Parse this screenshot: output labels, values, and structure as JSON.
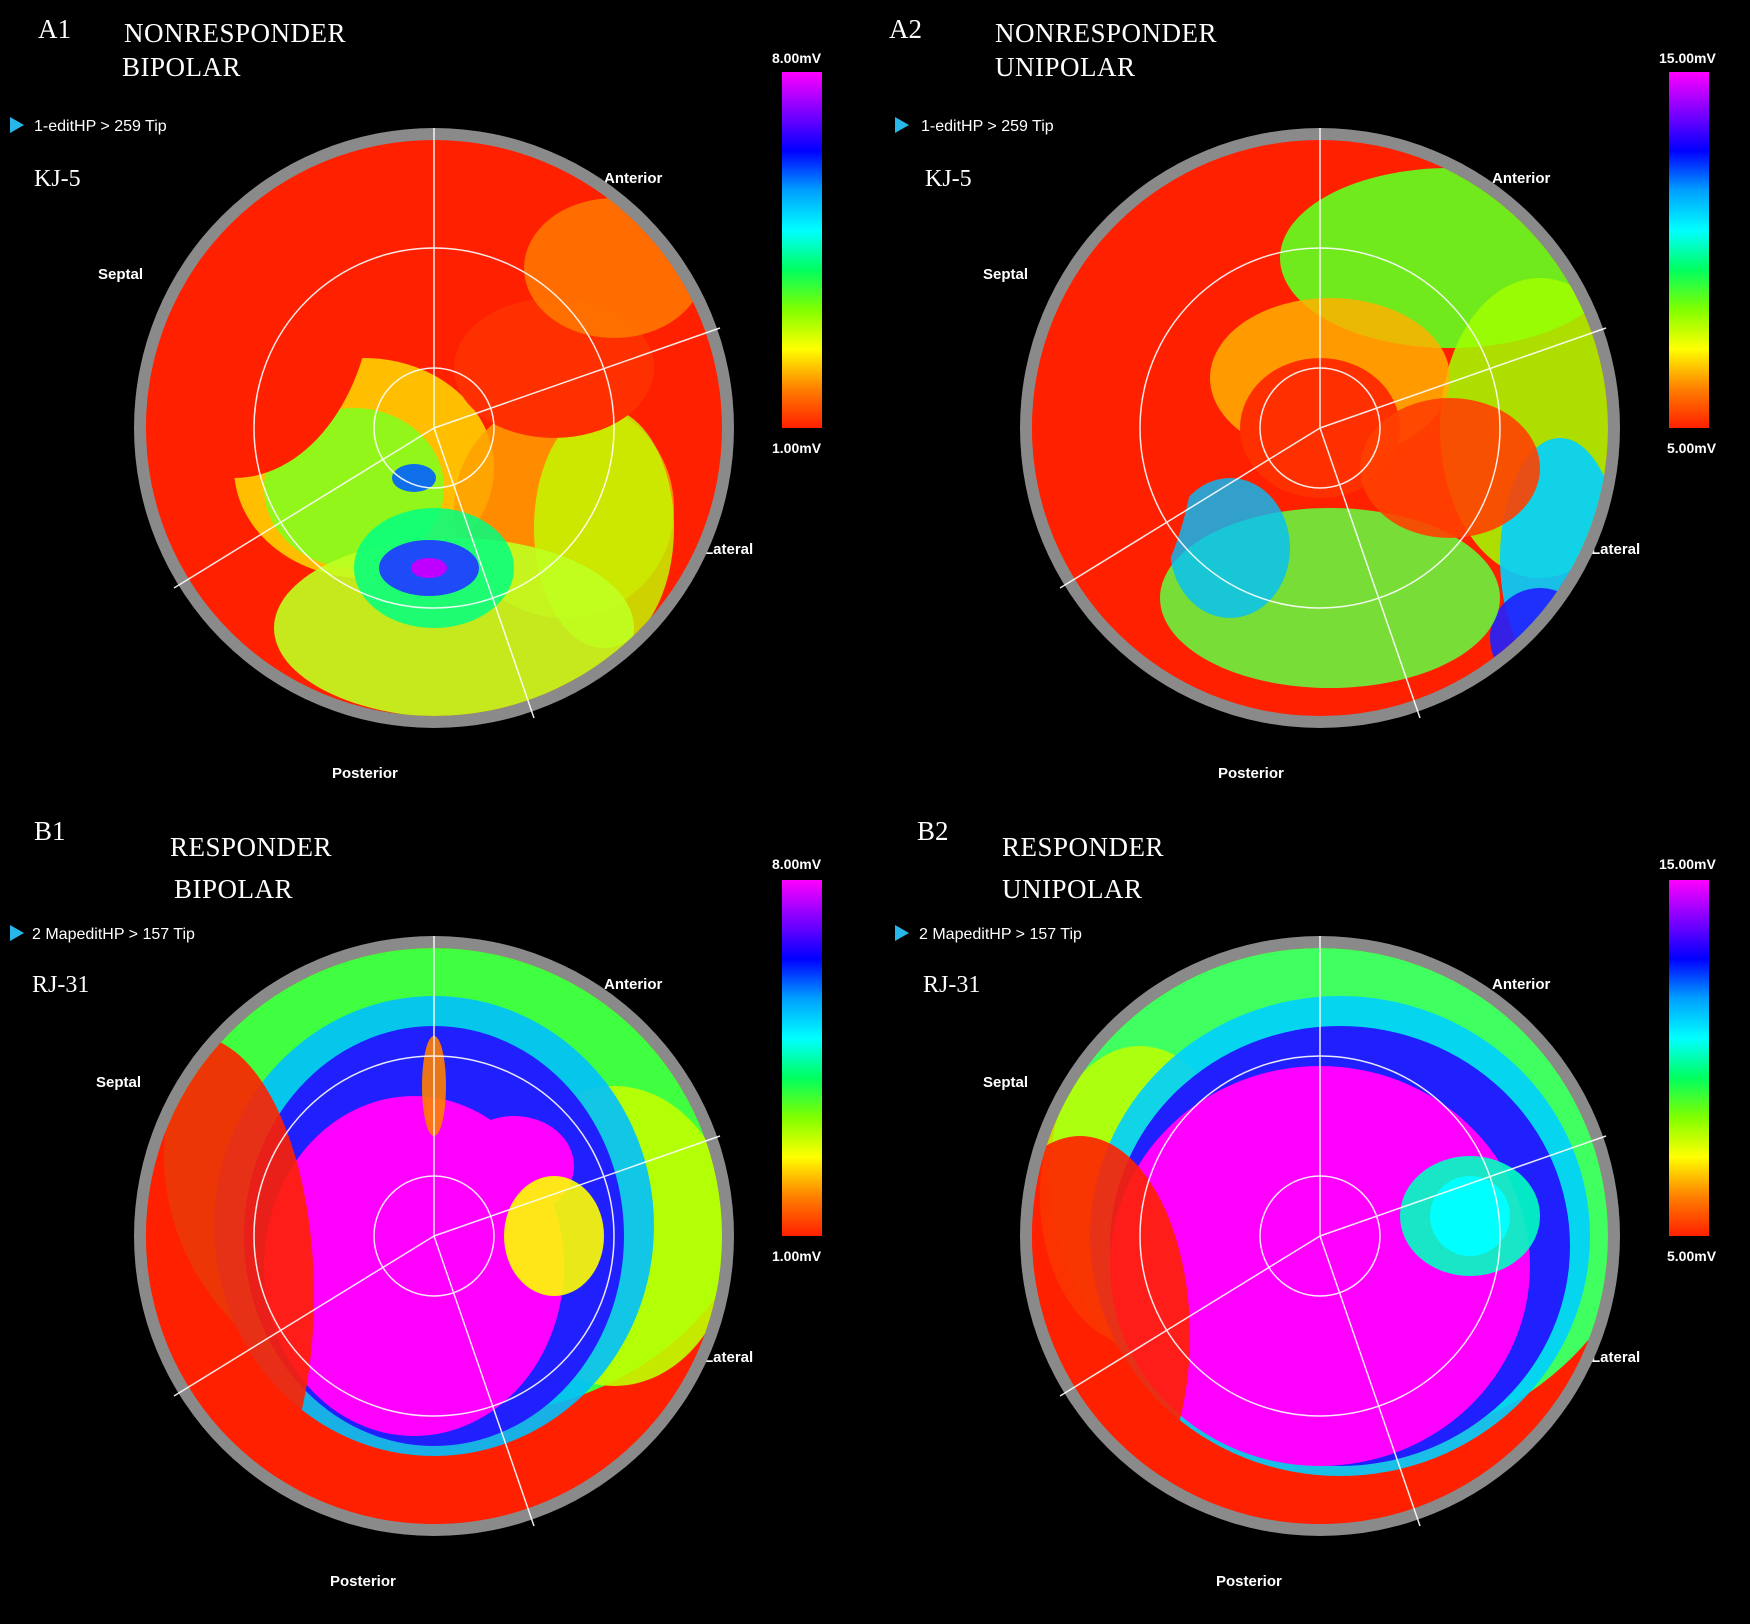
{
  "panels": [
    {
      "label": "A1",
      "title1": "NONRESPONDER",
      "title2": "BIPOLAR",
      "map": "1-editHP > 259 Tip",
      "patient": "KJ-5",
      "scale_max": "8.00mV",
      "scale_min": "1.00mV"
    },
    {
      "label": "A2",
      "title1": "NONRESPONDER",
      "title2": "UNIPOLAR",
      "map": "1-editHP > 259 Tip",
      "patient": "KJ-5",
      "scale_max": "15.00mV",
      "scale_min": "5.00mV"
    },
    {
      "label": "B1",
      "title1": "RESPONDER",
      "title2": "BIPOLAR",
      "map": "2 MapeditHP > 157 Tip",
      "patient": "RJ-31",
      "scale_max": "8.00mV",
      "scale_min": "1.00mV"
    },
    {
      "label": "B2",
      "title1": "RESPONDER",
      "title2": "UNIPOLAR",
      "map": "2 MapeditHP > 157 Tip",
      "patient": "RJ-31",
      "scale_max": "15.00mV",
      "scale_min": "5.00mV"
    }
  ],
  "directions": {
    "anterior": "Anterior",
    "septal": "Septal",
    "lateral": "Lateral",
    "posterior": "Posterior"
  },
  "colors": {
    "background": "#000000",
    "rim": "#8a8a8a",
    "play": "#29b6e8"
  }
}
